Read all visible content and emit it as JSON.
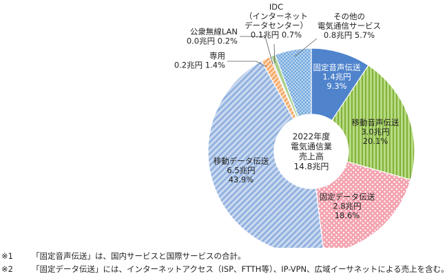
{
  "chart_data": {
    "type": "pie",
    "style": "donut",
    "center_label": [
      "2022年度",
      "電気通信業",
      "売上高",
      "14.8兆円"
    ],
    "slices": [
      {
        "name": "固定音声伝送",
        "amount": "1.4兆円",
        "percent_text": "9.3%",
        "value": 9.3,
        "color": "#4f83cc",
        "pattern": "solid"
      },
      {
        "name": "移動音声伝送",
        "amount": "3.0兆円",
        "percent_text": "20.1%",
        "value": 20.1,
        "color": "#8fc04a",
        "pattern": "stripe-vertical"
      },
      {
        "name": "固定データ伝送",
        "amount": "2.8兆円",
        "percent_text": "18.6%",
        "value": 18.6,
        "color": "#ee8a98",
        "pattern": "dots"
      },
      {
        "name": "移動データ伝送",
        "amount": "6.5兆円",
        "percent_text": "43.9%",
        "value": 43.9,
        "color": "#8eaedd",
        "pattern": "stripe-diagonal"
      },
      {
        "name": "専用",
        "amount": "0.2兆円",
        "percent_text": "1.4%",
        "value": 1.4,
        "color": "#f2a25c",
        "pattern": "stripe-diagonal"
      },
      {
        "name": "公衆無線LAN",
        "amount": "0.0兆円",
        "percent_text": "0.2%",
        "value": 0.2,
        "color": "#c9a0d8",
        "pattern": "solid"
      },
      {
        "name": "IDC\n（インターネット\nデータセンター）",
        "amount": "0.1兆円",
        "percent_text": "0.7%",
        "value": 0.7,
        "color": "#a8d08d",
        "pattern": "solid"
      },
      {
        "name": "その他の\n電気通信サービス",
        "amount": "0.8兆円",
        "percent_text": "5.7%",
        "value": 5.7,
        "color": "#5b9bd5",
        "pattern": "checker"
      }
    ],
    "title": "",
    "xlabel": "",
    "ylabel": "",
    "legend": "none"
  },
  "notes": [
    {
      "mark": "※1",
      "text": "「固定音声伝送」は、国内サービスと国際サービスの合計。"
    },
    {
      "mark": "※2",
      "text": "「固定データ伝送」には、インターネットアクセス（ISP、FTTH等）、IP-VPN、広域イーサネットによる売上を含む。"
    }
  ]
}
